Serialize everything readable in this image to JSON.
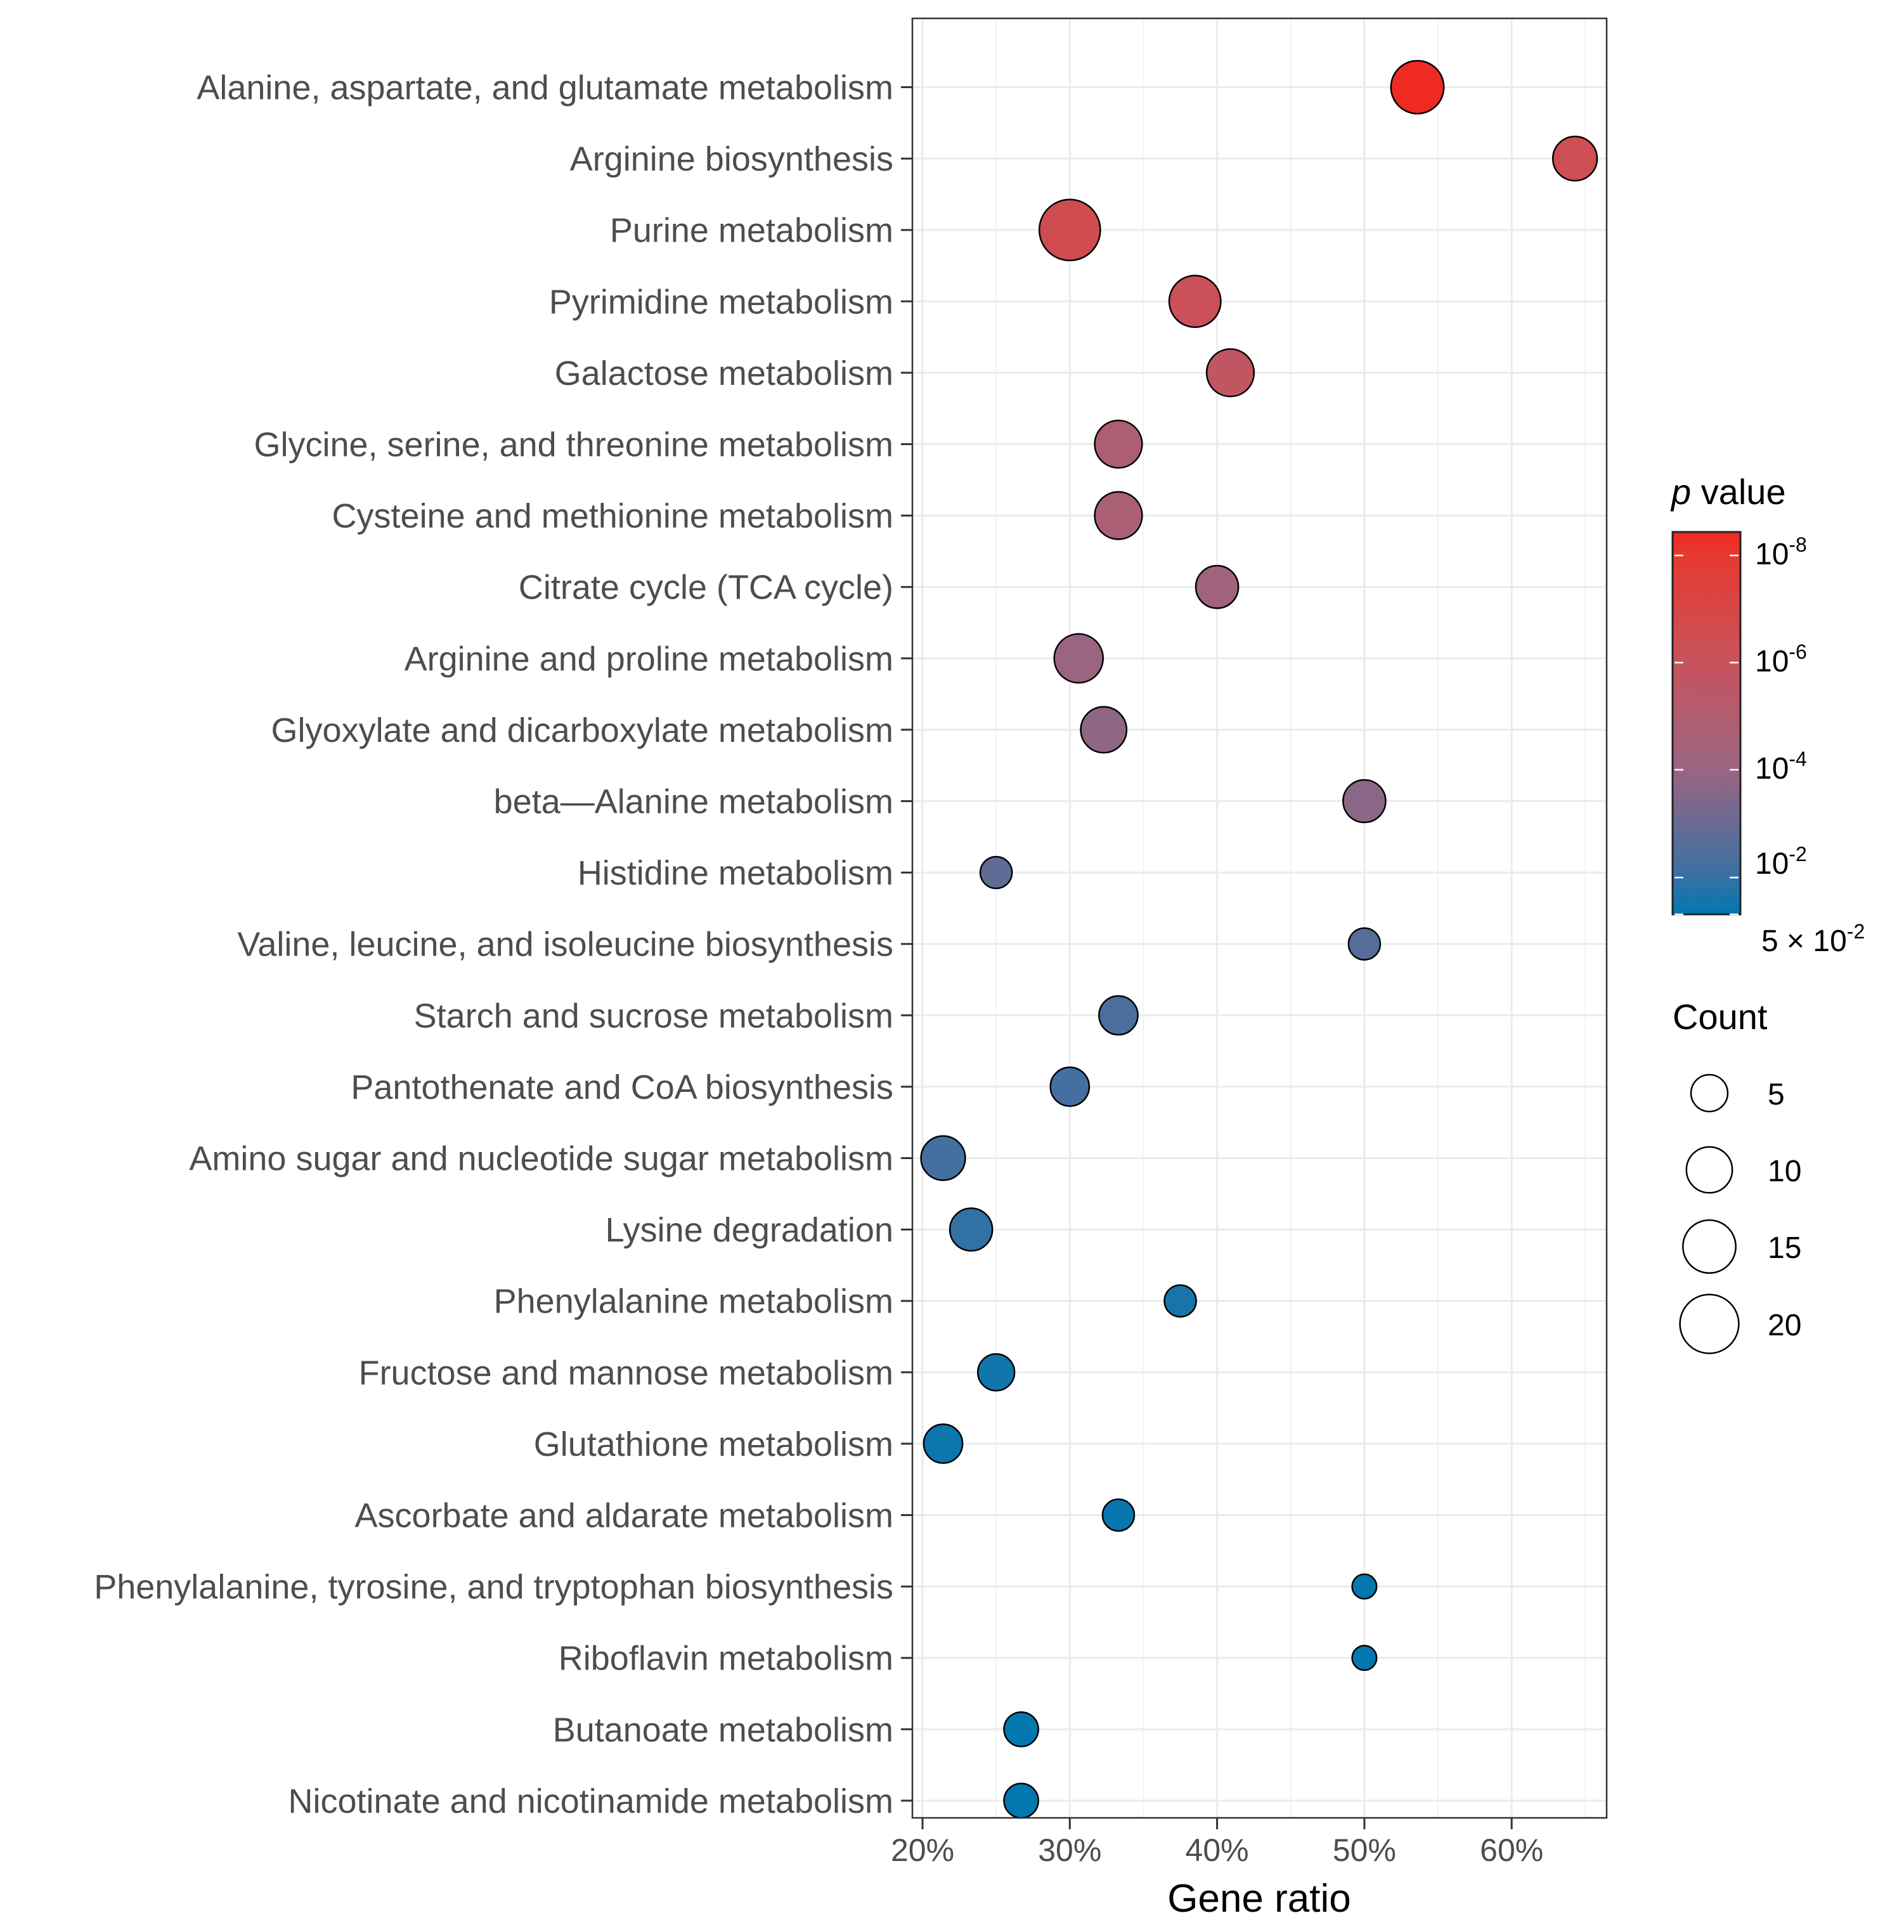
{
  "chart_data": {
    "type": "scatter",
    "title": "",
    "xlabel": "Gene ratio",
    "ylabel": "",
    "xlim": [
      19.4,
      66.5
    ],
    "x_ticks": [
      20,
      30,
      40,
      50,
      60
    ],
    "x_tick_labels": [
      "20%",
      "30%",
      "40%",
      "50%",
      "60%"
    ],
    "grid": true,
    "legend_placement": "right",
    "categories": [
      "Alanine, aspartate, and glutamate metabolism",
      "Arginine biosynthesis",
      "Purine metabolism",
      "Pyrimidine metabolism",
      "Galactose metabolism",
      "Glycine, serine, and threonine metabolism",
      "Cysteine and methionine metabolism",
      "Citrate cycle (TCA cycle)",
      "Arginine and proline metabolism",
      "Glyoxylate and dicarboxylate metabolism",
      "beta—Alanine metabolism",
      "Histidine metabolism",
      "Valine, leucine, and isoleucine biosynthesis",
      "Starch and sucrose metabolism",
      "Pantothenate and CoA biosynthesis",
      "Amino sugar and nucleotide sugar metabolism",
      "Lysine degradation",
      "Phenylalanine metabolism",
      "Fructose and mannose metabolism",
      "Glutathione metabolism",
      "Ascorbate and aldarate metabolism",
      "Phenylalanine, tyrosine, and tryptophan biosynthesis",
      "Riboflavin metabolism",
      "Butanoate metabolism",
      "Nicotinate and nicotinamide metabolism"
    ],
    "gene_ratio_percent": [
      53.6,
      64.3,
      30.0,
      38.5,
      40.9,
      33.3,
      33.3,
      40.0,
      30.6,
      32.3,
      50.0,
      25.0,
      50.0,
      33.3,
      30.0,
      21.4,
      23.3,
      37.5,
      25.0,
      21.4,
      33.3,
      50.0,
      50.0,
      26.7,
      26.7
    ],
    "count": [
      15,
      9,
      22,
      14,
      11,
      11,
      11,
      8,
      12,
      10,
      8,
      3,
      3,
      6,
      6,
      9,
      8,
      3,
      5,
      6,
      3,
      1,
      1,
      4,
      4
    ],
    "p_value": [
      5e-09,
      4e-07,
      3e-07,
      6e-07,
      2e-06,
      1.5e-05,
      2e-05,
      6e-05,
      0.0001,
      0.00016,
      0.0002,
      0.0016,
      0.0025,
      0.004,
      0.006,
      0.006,
      0.012,
      0.025,
      0.03,
      0.035,
      0.04,
      0.045,
      0.045,
      0.045,
      0.048
    ],
    "color_legend": {
      "title_italic": "p",
      "title_rest": " value",
      "ticks": [
        {
          "base": "10",
          "exp": "-8",
          "neglog": 8
        },
        {
          "base": "10",
          "exp": "-6",
          "neglog": 6
        },
        {
          "base": "10",
          "exp": "-4",
          "neglog": 4
        },
        {
          "base": "10",
          "exp": "-2",
          "neglog": 2
        },
        {
          "base": "5 × 10",
          "exp": "-2",
          "neglog": 1.301
        }
      ],
      "low_color": "#0077b0",
      "high_color": "#ee2a22"
    },
    "size_legend": {
      "title": "Count",
      "values": [
        5,
        10,
        15,
        20
      ],
      "labels": [
        "5",
        "10",
        "15",
        "20"
      ]
    }
  }
}
